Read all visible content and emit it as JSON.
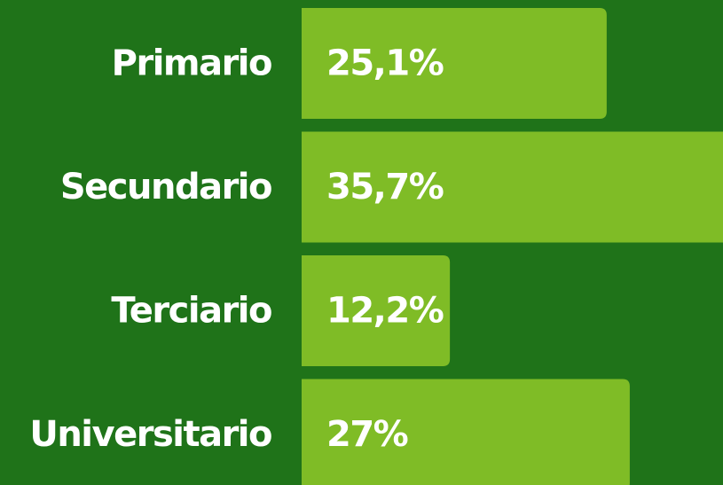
{
  "chart_data": {
    "type": "bar",
    "orientation": "horizontal",
    "categories": [
      "Primario",
      "Secundario",
      "Terciario",
      "Universitario"
    ],
    "values": [
      25.1,
      35.7,
      12.2,
      27
    ],
    "value_labels": [
      "25,1%",
      "35,7%",
      "12,2%",
      "27%"
    ],
    "color": "#7fbc26"
  }
}
